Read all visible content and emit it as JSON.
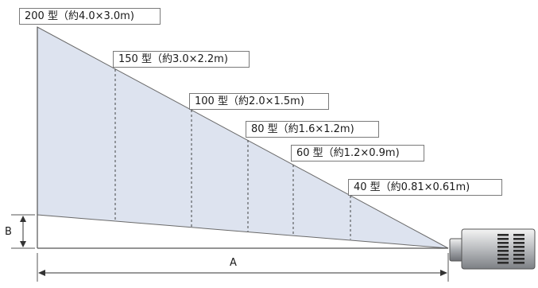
{
  "screens": [
    {
      "label": "200 型（約4.0×3.0m)"
    },
    {
      "label": "150 型（約3.0×2.2m)"
    },
    {
      "label": "100 型（約2.0×1.5m)"
    },
    {
      "label": "80 型（約1.6×1.2m)"
    },
    {
      "label": "60 型（約1.2×0.9m)"
    },
    {
      "label": "40 型（約0.81×0.61m)"
    }
  ],
  "dimensions": {
    "distance_label": "A",
    "height_label": "B"
  },
  "colors": {
    "beam_fill": "#dde3ef",
    "beam_stroke": "#6a6a6a",
    "guide": "#555555",
    "text": "#1a1a1a"
  }
}
